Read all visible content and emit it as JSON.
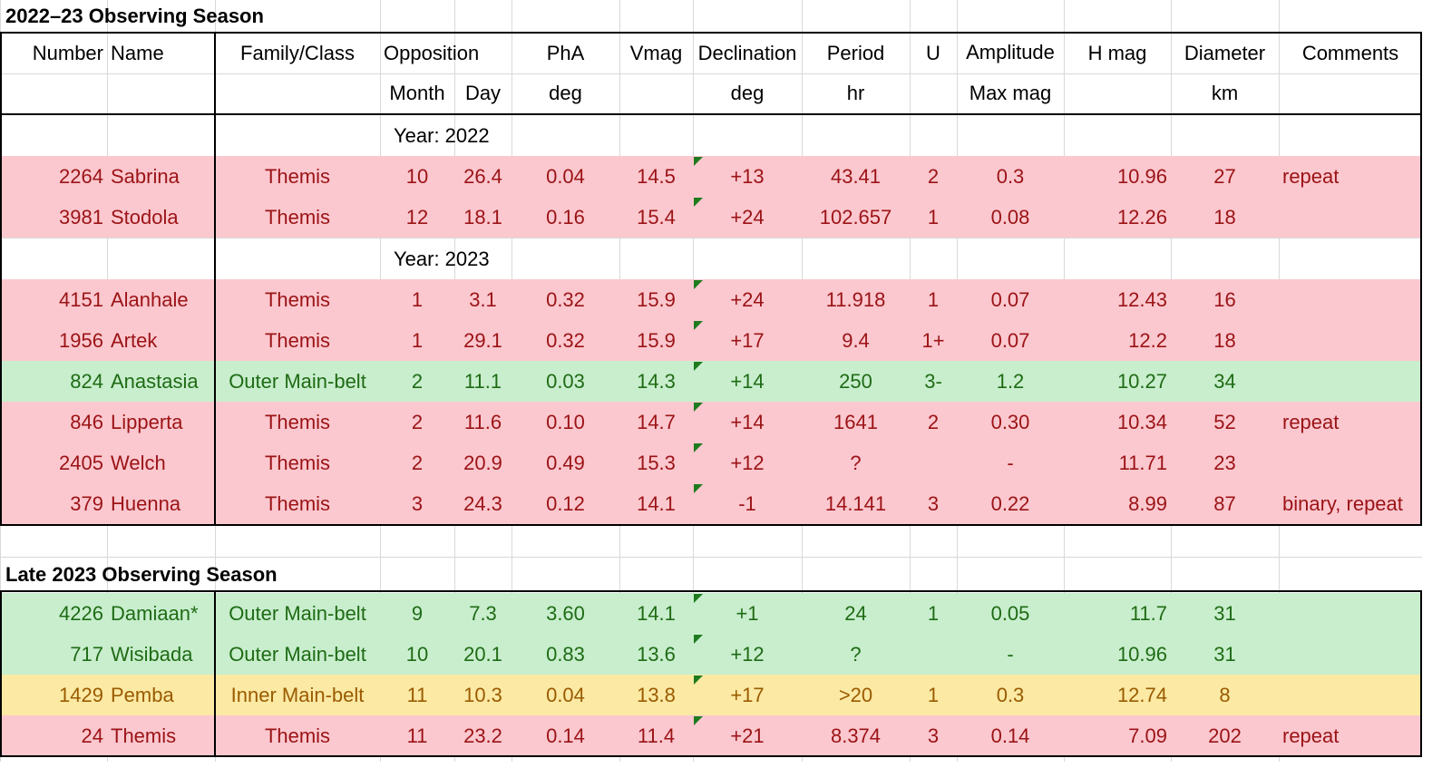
{
  "season1": {
    "title": "2022–23 Observing Season",
    "header_row1": [
      "Number",
      "Name",
      "Family/Class",
      "Opposition",
      "",
      "PhA",
      "Vmag",
      "Declination",
      "Period",
      "U",
      "Amplitude",
      "H mag",
      "Diameter",
      "Comments"
    ],
    "header_row2": [
      "",
      "",
      "",
      "Month",
      "Day",
      "deg",
      "",
      "deg",
      "hr",
      "",
      "Max mag",
      "",
      "km",
      ""
    ],
    "year_2022": "Year: 2022",
    "year_2023": "Year: 2023",
    "rows_2022": [
      {
        "class": "pink",
        "cells": [
          "2264",
          "Sabrina",
          "Themis",
          "10",
          "26.4",
          "0.04",
          "14.5",
          "+13",
          "43.41",
          "2",
          "0.3",
          "10.96",
          "27",
          "repeat"
        ]
      },
      {
        "class": "pink",
        "cells": [
          "3981",
          "Stodola",
          "Themis",
          "12",
          "18.1",
          "0.16",
          "15.4",
          "+24",
          "102.657",
          "1",
          "0.08",
          "12.26",
          "18",
          ""
        ]
      }
    ],
    "rows_2023": [
      {
        "class": "pink",
        "cells": [
          "4151",
          "Alanhale",
          "Themis",
          "1",
          "3.1",
          "0.32",
          "15.9",
          "+24",
          "11.918",
          "1",
          "0.07",
          "12.43",
          "16",
          ""
        ]
      },
      {
        "class": "pink",
        "cells": [
          "1956",
          "Artek",
          "Themis",
          "1",
          "29.1",
          "0.32",
          "15.9",
          "+17",
          "9.4",
          "1+",
          "0.07",
          "12.2",
          "18",
          ""
        ]
      },
      {
        "class": "green",
        "cells": [
          "824",
          "Anastasia",
          "Outer Main-belt",
          "2",
          "11.1",
          "0.03",
          "14.3",
          "+14",
          "250",
          "3-",
          "1.2",
          "10.27",
          "34",
          ""
        ]
      },
      {
        "class": "pink",
        "cells": [
          "846",
          "Lipperta",
          "Themis",
          "2",
          "11.6",
          "0.10",
          "14.7",
          "+14",
          "1641",
          "2",
          "0.30",
          "10.34",
          "52",
          "repeat"
        ]
      },
      {
        "class": "pink",
        "cells": [
          "2405",
          "Welch",
          "Themis",
          "2",
          "20.9",
          "0.49",
          "15.3",
          "+12",
          "?",
          "",
          "-",
          "11.71",
          "23",
          ""
        ]
      },
      {
        "class": "pink",
        "cells": [
          "379",
          "Huenna",
          "Themis",
          "3",
          "24.3",
          "0.12",
          "14.1",
          "-1",
          "14.141",
          "3",
          "0.22",
          "8.99",
          "87",
          "binary, repeat"
        ]
      }
    ]
  },
  "season2": {
    "title": "Late 2023 Observing Season",
    "rows": [
      {
        "class": "green",
        "cells": [
          "4226",
          "Damiaan*",
          "Outer Main-belt",
          "9",
          "7.3",
          "3.60",
          "14.1",
          "+1",
          "24",
          "1",
          "0.05",
          "11.7",
          "31",
          ""
        ]
      },
      {
        "class": "green",
        "cells": [
          "717",
          "Wisibada",
          "Outer Main-belt",
          "10",
          "20.1",
          "0.83",
          "13.6",
          "+12",
          "?",
          "",
          "-",
          "10.96",
          "31",
          ""
        ]
      },
      {
        "class": "yellow",
        "cells": [
          "1429",
          "Pemba",
          "Inner Main-belt",
          "11",
          "10.3",
          "0.04",
          "13.8",
          "+17",
          ">20",
          "1",
          "0.3",
          "12.74",
          "8",
          ""
        ]
      },
      {
        "class": "pink",
        "cells": [
          "24",
          "Themis",
          "Themis",
          "11",
          "23.2",
          "0.14",
          "11.4",
          "+21",
          "8.374",
          "3",
          "0.14",
          "7.09",
          "202",
          "repeat"
        ]
      }
    ]
  }
}
